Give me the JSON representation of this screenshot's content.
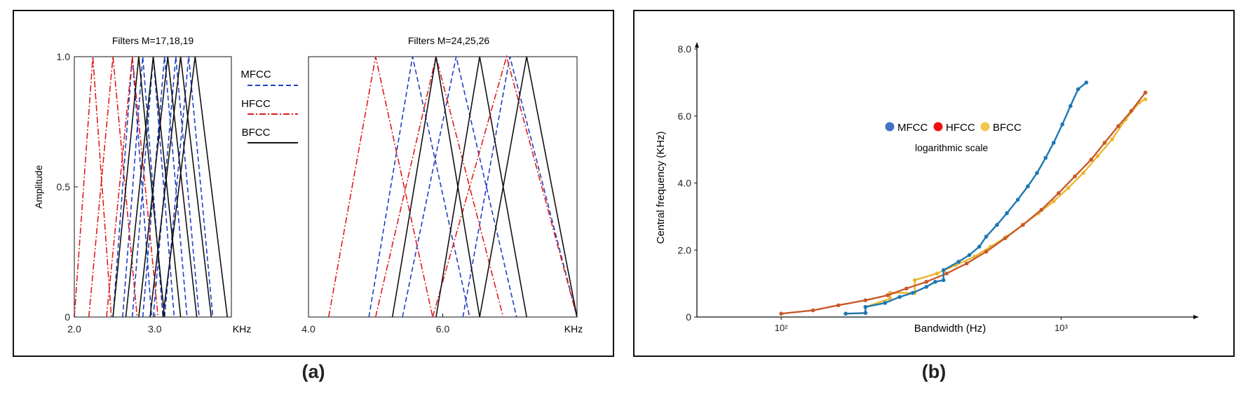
{
  "captions": {
    "a": "(a)",
    "b": "(b)"
  },
  "colors": {
    "mfcc_a": "#1f3fc0",
    "hfcc_a": "#e01c1c",
    "bfcc_a": "#111111",
    "mfcc_b": "#1c78b4",
    "hfcc_b": "#c8582a",
    "bfcc_b": "#e8b830",
    "legend_mfcc": "#4472c4",
    "legend_hfcc": "#ee1111",
    "legend_bfcc": "#f2c750"
  },
  "panel_a": {
    "legend": [
      {
        "label": "MFCC",
        "style": "dashed",
        "series": "mfcc"
      },
      {
        "label": "HFCC",
        "style": "dashdot",
        "series": "hfcc"
      },
      {
        "label": "BFCC",
        "style": "solid",
        "series": "bfcc"
      }
    ],
    "ylabel": "Amplitude",
    "yticks": [
      "1.0",
      "0.5",
      "0"
    ]
  },
  "panel_b": {
    "legend": {
      "items": [
        "MFCC",
        "HFCC",
        "BFCC"
      ],
      "note": "logarithmic scale"
    }
  },
  "chart_data": [
    {
      "type": "line",
      "title": "Filters M=17,18,19",
      "xlabel": "KHz",
      "ylabel": "Amplitude",
      "xlim": [
        2.0,
        3.95
      ],
      "ylim": [
        0,
        1.0
      ],
      "xticks": [
        2.0,
        3.0
      ],
      "xtick_labels": [
        "2.0",
        "3.0"
      ],
      "yticks": [
        0,
        0.5,
        1.0
      ],
      "series": [
        {
          "name": "MFCC",
          "style": "dashed",
          "triangles": [
            [
              2.48,
              2.72,
              2.96
            ],
            [
              2.6,
              2.85,
              3.1
            ],
            [
              2.72,
              2.98,
              3.24
            ],
            [
              2.85,
              3.12,
              3.4
            ],
            [
              2.98,
              3.26,
              3.55
            ],
            [
              3.12,
              3.42,
              3.72
            ]
          ]
        },
        {
          "name": "HFCC",
          "style": "dashdot",
          "triangles": [
            [
              2.0,
              2.23,
              2.46
            ],
            [
              2.18,
              2.48,
              2.78
            ],
            [
              2.4,
              2.72,
              3.04
            ]
          ]
        },
        {
          "name": "BFCC",
          "style": "solid",
          "triangles": [
            [
              2.48,
              2.8,
              3.12
            ],
            [
              2.64,
              2.98,
              3.32
            ],
            [
              2.8,
              3.16,
              3.52
            ],
            [
              2.94,
              3.32,
              3.7
            ],
            [
              3.1,
              3.5,
              3.9
            ]
          ]
        }
      ]
    },
    {
      "type": "line",
      "title": "Filters M=24,25,26",
      "xlabel": "KHz",
      "xlim": [
        4.0,
        8.0
      ],
      "ylim": [
        0,
        1.0
      ],
      "xticks": [
        4.0,
        6.0
      ],
      "xtick_labels": [
        "4.0",
        "6.0"
      ],
      "series": [
        {
          "name": "MFCC",
          "style": "dashed",
          "triangles": [
            [
              4.9,
              5.55,
              6.4
            ],
            [
              5.4,
              6.2,
              7.1
            ],
            [
              6.3,
              7.0,
              8.0
            ]
          ]
        },
        {
          "name": "HFCC",
          "style": "dashdot",
          "triangles": [
            [
              4.3,
              5.0,
              5.85
            ],
            [
              5.0,
              5.9,
              6.9
            ],
            [
              5.85,
              6.95,
              8.0
            ]
          ]
        },
        {
          "name": "BFCC",
          "style": "solid",
          "triangles": [
            [
              5.25,
              5.9,
              6.55
            ],
            [
              5.9,
              6.55,
              7.25
            ],
            [
              6.55,
              7.25,
              8.0
            ]
          ]
        }
      ]
    },
    {
      "type": "line",
      "xlabel": "Bandwidth (Hz)",
      "ylabel": "Central frequency (KHz)",
      "xscale": "log",
      "xlim": [
        50,
        3000
      ],
      "ylim": [
        0,
        8.0
      ],
      "yticks": [
        0,
        2.0,
        4.0,
        6.0,
        8.0
      ],
      "ytick_labels": [
        "0",
        "2.0",
        "4.0",
        "6.0",
        "8.0"
      ],
      "xticks": [
        100,
        1000
      ],
      "xtick_labels": [
        "10²",
        "10³"
      ],
      "legend_note": "logarithmic scale",
      "series": [
        {
          "name": "MFCC",
          "x": [
            170,
            200,
            200,
            235,
            265,
            295,
            330,
            355,
            380,
            380,
            430,
            470,
            510,
            540,
            590,
            640,
            700,
            760,
            820,
            880,
            940,
            1010,
            1080,
            1150,
            1230
          ],
          "y": [
            0.1,
            0.12,
            0.3,
            0.42,
            0.6,
            0.72,
            0.9,
            1.05,
            1.1,
            1.4,
            1.65,
            1.85,
            2.1,
            2.4,
            2.75,
            3.1,
            3.5,
            3.9,
            4.3,
            4.75,
            5.2,
            5.75,
            6.3,
            6.8,
            7.0
          ]
        },
        {
          "name": "HFCC",
          "x": [
            100,
            130,
            160,
            200,
            240,
            280,
            330,
            390,
            460,
            540,
            630,
            730,
            850,
            980,
            1120,
            1280,
            1430,
            1600,
            1780,
            2000
          ],
          "y": [
            0.1,
            0.2,
            0.35,
            0.5,
            0.65,
            0.85,
            1.05,
            1.3,
            1.6,
            1.95,
            2.35,
            2.75,
            3.2,
            3.7,
            4.2,
            4.7,
            5.2,
            5.7,
            6.15,
            6.7
          ]
        },
        {
          "name": "BFCC",
          "x": [
            170,
            200,
            200,
            245,
            245,
            300,
            300,
            360,
            420,
            490,
            560,
            640,
            730,
            830,
            940,
            1060,
            1200,
            1350,
            1520,
            1700,
            1900,
            2000
          ],
          "y": [
            0.1,
            0.12,
            0.3,
            0.55,
            0.72,
            0.72,
            1.1,
            1.3,
            1.55,
            1.8,
            2.1,
            2.4,
            2.75,
            3.1,
            3.45,
            3.85,
            4.3,
            4.8,
            5.3,
            5.9,
            6.4,
            6.5
          ]
        }
      ]
    }
  ]
}
